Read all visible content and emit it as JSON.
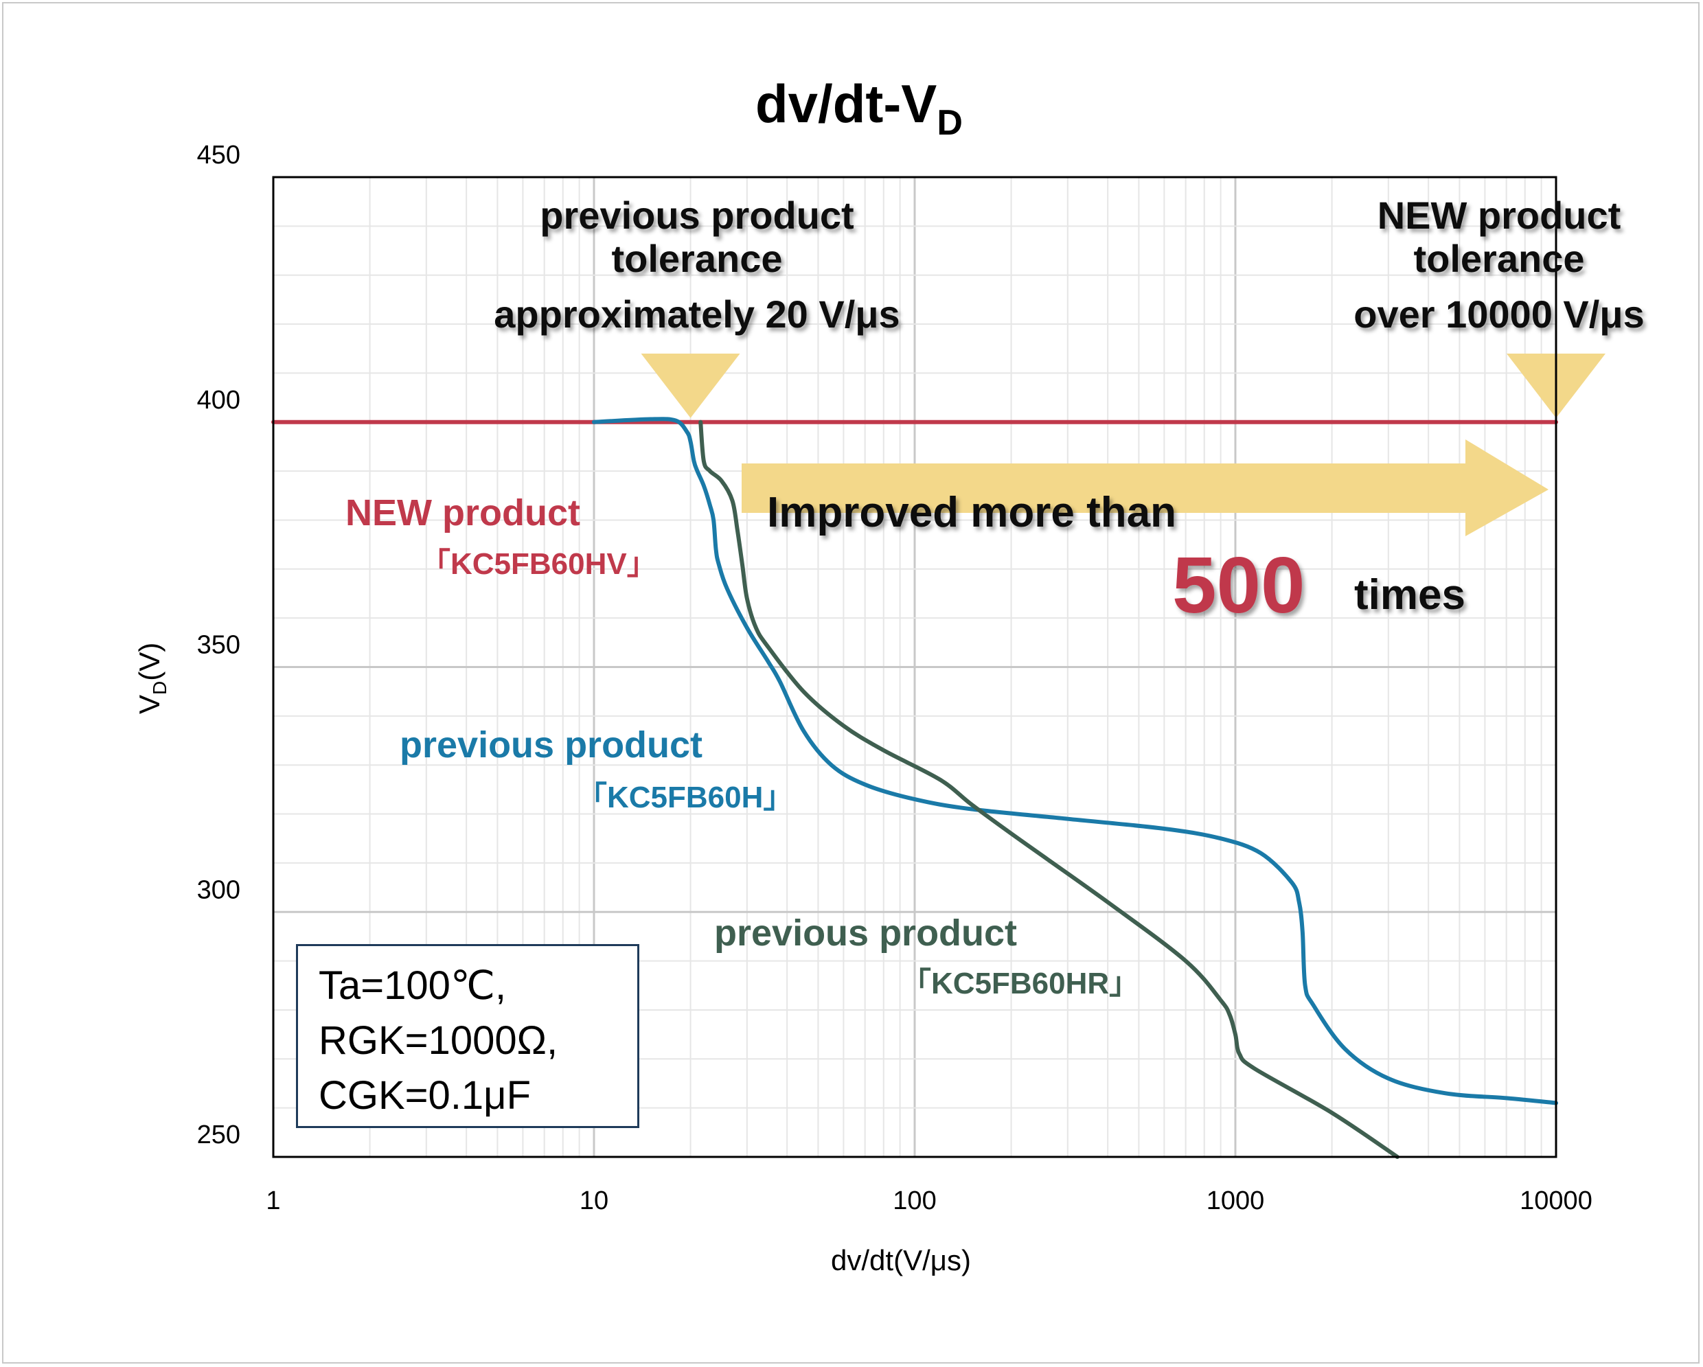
{
  "chart_data": {
    "type": "line",
    "title": "dv/dt-V",
    "title_subscript": "D",
    "xlabel": "dv/dt(V/μs)",
    "ylabel": "V",
    "ylabel_subscript": "D",
    "ylabel_suffix": "(V)",
    "x_scale": "log",
    "xlim": [
      1,
      10000
    ],
    "ylim": [
      250,
      450
    ],
    "x_ticks": [
      "1",
      "10",
      "100",
      "1000",
      "10000"
    ],
    "y_ticks": [
      "250",
      "300",
      "350",
      "400",
      "450"
    ],
    "grid": true,
    "series": [
      {
        "name": "NEW product 「KC5FB60HV」",
        "color": "#c0394b",
        "points": [
          [
            1,
            400
          ],
          [
            10000,
            400
          ]
        ]
      },
      {
        "name": "previous product 「KC5FB60H」",
        "color": "#1a7aa8",
        "points": [
          [
            10,
            400
          ],
          [
            15,
            400.6
          ],
          [
            18,
            400.3
          ],
          [
            19.5,
            398
          ],
          [
            20,
            396
          ],
          [
            20.5,
            392
          ],
          [
            21,
            390
          ],
          [
            22,
            387
          ],
          [
            23,
            383
          ],
          [
            23.6,
            380
          ],
          [
            24,
            374
          ],
          [
            24.5,
            371
          ],
          [
            26,
            366
          ],
          [
            30,
            358
          ],
          [
            35,
            351
          ],
          [
            38,
            347
          ],
          [
            45,
            337
          ],
          [
            55,
            330
          ],
          [
            70,
            326
          ],
          [
            100,
            323
          ],
          [
            150,
            321
          ],
          [
            300,
            319
          ],
          [
            600,
            317
          ],
          [
            900,
            315
          ],
          [
            1200,
            312
          ],
          [
            1500,
            306
          ],
          [
            1580,
            302
          ],
          [
            1620,
            296
          ],
          [
            1650,
            285
          ],
          [
            1750,
            281
          ],
          [
            2200,
            272
          ],
          [
            3000,
            266
          ],
          [
            4500,
            263
          ],
          [
            7000,
            262
          ],
          [
            10000,
            261
          ]
        ]
      },
      {
        "name": "previous product 「KC5FB60HR」",
        "color": "#3f5f50",
        "points": [
          [
            21.5,
            400
          ],
          [
            22,
            392
          ],
          [
            23,
            390
          ],
          [
            25,
            388
          ],
          [
            27,
            384
          ],
          [
            28,
            378
          ],
          [
            29,
            371
          ],
          [
            30,
            364
          ],
          [
            32,
            358
          ],
          [
            35,
            354
          ],
          [
            45,
            345
          ],
          [
            60,
            338
          ],
          [
            80,
            333
          ],
          [
            120,
            327
          ],
          [
            150,
            322
          ],
          [
            200,
            316
          ],
          [
            400,
            302
          ],
          [
            700,
            290
          ],
          [
            900,
            282
          ],
          [
            960,
            279
          ],
          [
            1000,
            275
          ],
          [
            1030,
            271
          ],
          [
            1150,
            268
          ],
          [
            2000,
            259
          ],
          [
            3200,
            250
          ]
        ]
      }
    ],
    "annotations": {
      "prev_tolerance": [
        "previous product",
        "tolerance",
        "approximately 20 V/μs"
      ],
      "new_tolerance": [
        "NEW product",
        "tolerance",
        "over 10000 V/μs"
      ],
      "improved": "Improved more than",
      "multiplier": "500",
      "times": "times",
      "new_label": "NEW product",
      "new_model": "「KC5FB60HV」",
      "prev_h_label": "previous product",
      "prev_h_model": "「KC5FB60H」",
      "prev_hr_label": "previous product",
      "prev_hr_model": "「KC5FB60HR」",
      "marker_x": [
        20,
        10000
      ]
    },
    "conditions": [
      "Ta=100℃,",
      "RGK=1000Ω,",
      "CGK=0.1μF"
    ]
  },
  "colors": {
    "arrow": "#f3d88a",
    "new": "#c0394b",
    "prev_h": "#1a7aa8",
    "prev_hr": "#3f5f50"
  }
}
